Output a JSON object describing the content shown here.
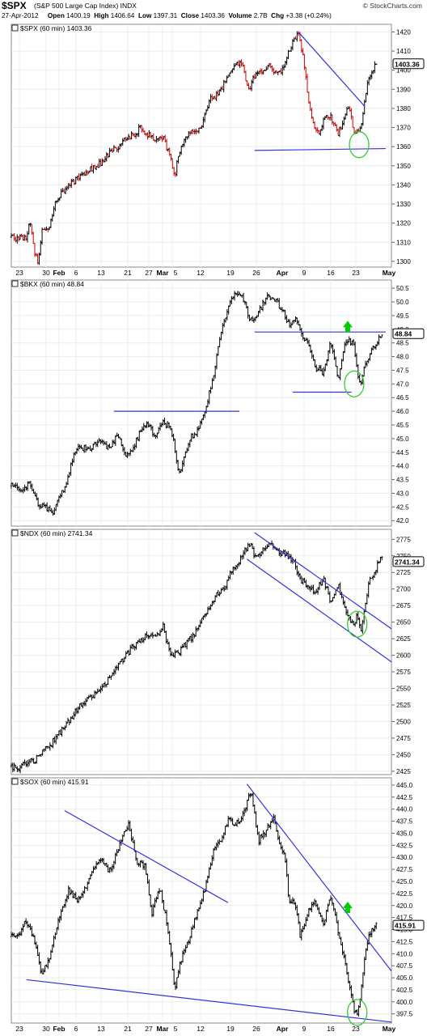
{
  "header": {
    "symbol": "$SPX",
    "name": "(S&P 500 Large Cap Index) INDX",
    "brand": "© StockCharts.com",
    "date": "27-Apr-2012",
    "open_label": "Open",
    "open": "1400.19",
    "high_label": "High",
    "high": "1406.64",
    "low_label": "Low",
    "low": "1397.31",
    "close_label": "Close",
    "close": "1403.36",
    "volume_label": "Volume",
    "volume": "2.7B",
    "chg_label": "Chg",
    "chg": "+3.38 (+0.24%)"
  },
  "colors": {
    "up": "#000000",
    "down": "#cc0000",
    "trendline": "#3333dd",
    "circle": "#33cc33",
    "arrow": "#00cc00"
  },
  "chart_data": [
    {
      "type": "ohlc",
      "title": "$SPX (60 min) 1403.36",
      "last_label": "1403.36",
      "x_ticks": [
        "23",
        "30",
        "Feb",
        "6",
        "13",
        "21",
        "27",
        "Mar",
        "5",
        "12",
        "19",
        "26",
        "Apr",
        "9",
        "16",
        "23",
        "May"
      ],
      "ylim": [
        1297,
        1424
      ],
      "y_ticks": [
        "1420",
        "1410",
        "1400",
        "1390",
        "1380",
        "1370",
        "1360",
        "1350",
        "1340",
        "1330",
        "1320",
        "1310",
        "1300"
      ],
      "path": [
        [
          0,
          1313
        ],
        [
          20,
          1312
        ],
        [
          40,
          1313
        ],
        [
          50,
          1321
        ],
        [
          60,
          1306
        ],
        [
          70,
          1300
        ],
        [
          80,
          1315
        ],
        [
          100,
          1318
        ],
        [
          120,
          1333
        ],
        [
          160,
          1341
        ],
        [
          200,
          1347
        ],
        [
          240,
          1352
        ],
        [
          260,
          1357
        ],
        [
          280,
          1360
        ],
        [
          300,
          1365
        ],
        [
          320,
          1366
        ],
        [
          340,
          1370
        ],
        [
          350,
          1367
        ],
        [
          380,
          1364
        ],
        [
          400,
          1364
        ],
        [
          420,
          1354
        ],
        [
          430,
          1345
        ],
        [
          440,
          1356
        ],
        [
          450,
          1362
        ],
        [
          480,
          1369
        ],
        [
          500,
          1369
        ],
        [
          520,
          1384
        ],
        [
          550,
          1389
        ],
        [
          570,
          1397
        ],
        [
          590,
          1403
        ],
        [
          610,
          1403
        ],
        [
          620,
          1392
        ],
        [
          630,
          1391
        ],
        [
          640,
          1397
        ],
        [
          660,
          1400
        ],
        [
          680,
          1403
        ],
        [
          700,
          1397
        ],
        [
          720,
          1404
        ],
        [
          740,
          1414
        ],
        [
          755,
          1420
        ],
        [
          770,
          1405
        ],
        [
          780,
          1387
        ],
        [
          790,
          1375
        ],
        [
          800,
          1370
        ],
        [
          810,
          1365
        ],
        [
          820,
          1374
        ],
        [
          840,
          1376
        ],
        [
          860,
          1367
        ],
        [
          870,
          1372
        ],
        [
          880,
          1378
        ],
        [
          890,
          1381
        ],
        [
          900,
          1366
        ],
        [
          910,
          1368
        ],
        [
          920,
          1371
        ],
        [
          930,
          1384
        ],
        [
          940,
          1396
        ],
        [
          960,
          1404
        ]
      ],
      "trendlines": [
        [
          [
            755,
            1420
          ],
          [
            930,
            1381
          ]
        ],
        [
          [
            640,
            1358
          ],
          [
            985,
            1359
          ]
        ]
      ],
      "circles": [
        [
          915,
          1361
        ]
      ],
      "arrows": []
    },
    {
      "type": "ohlc",
      "title": "$BKX (60 min) 48.84",
      "last_label": "48.84",
      "x_ticks": [],
      "ylim": [
        41.8,
        50.8
      ],
      "y_ticks": [
        "50.5",
        "50.0",
        "49.5",
        "49.0",
        "48.5",
        "48.0",
        "47.5",
        "47.0",
        "46.5",
        "46.0",
        "45.5",
        "45.0",
        "44.5",
        "44.0",
        "43.5",
        "43.0",
        "42.5",
        "42.0"
      ],
      "path": [
        [
          0,
          43.3
        ],
        [
          30,
          43.1
        ],
        [
          50,
          43.4
        ],
        [
          70,
          42.6
        ],
        [
          90,
          42.5
        ],
        [
          110,
          42.3
        ],
        [
          130,
          42.9
        ],
        [
          150,
          43.6
        ],
        [
          170,
          44.7
        ],
        [
          200,
          44.6
        ],
        [
          230,
          44.9
        ],
        [
          260,
          44.6
        ],
        [
          280,
          45.2
        ],
        [
          300,
          44.3
        ],
        [
          320,
          44.6
        ],
        [
          340,
          45.3
        ],
        [
          360,
          45.5
        ],
        [
          380,
          45.1
        ],
        [
          400,
          45.6
        ],
        [
          420,
          45.4
        ],
        [
          430,
          44.6
        ],
        [
          440,
          43.7
        ],
        [
          450,
          44.1
        ],
        [
          470,
          45.0
        ],
        [
          490,
          45.3
        ],
        [
          510,
          46.0
        ],
        [
          530,
          47.2
        ],
        [
          550,
          48.8
        ],
        [
          570,
          49.8
        ],
        [
          590,
          50.3
        ],
        [
          610,
          50.1
        ],
        [
          630,
          49.3
        ],
        [
          650,
          49.6
        ],
        [
          670,
          50.2
        ],
        [
          690,
          50.1
        ],
        [
          710,
          49.8
        ],
        [
          730,
          49.2
        ],
        [
          750,
          49.3
        ],
        [
          765,
          48.8
        ],
        [
          780,
          48.5
        ],
        [
          800,
          47.6
        ],
        [
          820,
          47.4
        ],
        [
          840,
          48.5
        ],
        [
          860,
          47.2
        ],
        [
          880,
          48.6
        ],
        [
          900,
          48.5
        ],
        [
          910,
          47.4
        ],
        [
          920,
          47.0
        ],
        [
          930,
          47.6
        ],
        [
          945,
          48.1
        ],
        [
          960,
          48.5
        ],
        [
          975,
          48.8
        ]
      ],
      "trendlines": [
        [
          [
            270,
            46.0
          ],
          [
            600,
            46.0
          ]
        ],
        [
          [
            640,
            48.9
          ],
          [
            985,
            48.9
          ]
        ],
        [
          [
            740,
            46.7
          ],
          [
            895,
            46.7
          ]
        ]
      ],
      "circles": [
        [
          902,
          47.0
        ]
      ],
      "arrows": [
        [
          885,
          49.1
        ]
      ]
    },
    {
      "type": "ohlc",
      "title": "$NDX (60 min) 2741.34",
      "last_label": "2741.34",
      "x_ticks": [],
      "ylim": [
        2420,
        2790
      ],
      "y_ticks": [
        "2775",
        "2750",
        "2725",
        "2700",
        "2675",
        "2650",
        "2625",
        "2600",
        "2575",
        "2550",
        "2525",
        "2500",
        "2475",
        "2450",
        "2425"
      ],
      "path": [
        [
          0,
          2432
        ],
        [
          20,
          2428
        ],
        [
          40,
          2437
        ],
        [
          60,
          2442
        ],
        [
          80,
          2455
        ],
        [
          100,
          2463
        ],
        [
          120,
          2478
        ],
        [
          140,
          2492
        ],
        [
          160,
          2508
        ],
        [
          180,
          2524
        ],
        [
          200,
          2532
        ],
        [
          220,
          2543
        ],
        [
          240,
          2552
        ],
        [
          260,
          2569
        ],
        [
          280,
          2587
        ],
        [
          300,
          2599
        ],
        [
          320,
          2614
        ],
        [
          340,
          2621
        ],
        [
          360,
          2632
        ],
        [
          380,
          2628
        ],
        [
          400,
          2644
        ],
        [
          410,
          2618
        ],
        [
          420,
          2596
        ],
        [
          440,
          2605
        ],
        [
          460,
          2618
        ],
        [
          480,
          2631
        ],
        [
          500,
          2655
        ],
        [
          520,
          2671
        ],
        [
          540,
          2692
        ],
        [
          560,
          2702
        ],
        [
          580,
          2727
        ],
        [
          600,
          2742
        ],
        [
          620,
          2762
        ],
        [
          630,
          2771
        ],
        [
          640,
          2749
        ],
        [
          660,
          2757
        ],
        [
          680,
          2770
        ],
        [
          700,
          2756
        ],
        [
          720,
          2752
        ],
        [
          740,
          2745
        ],
        [
          760,
          2713
        ],
        [
          780,
          2705
        ],
        [
          800,
          2694
        ],
        [
          820,
          2716
        ],
        [
          840,
          2682
        ],
        [
          860,
          2705
        ],
        [
          880,
          2667
        ],
        [
          900,
          2646
        ],
        [
          910,
          2660
        ],
        [
          920,
          2634
        ],
        [
          940,
          2709
        ],
        [
          960,
          2732
        ],
        [
          975,
          2747
        ]
      ],
      "trendlines": [
        [
          [
            640,
            2785
          ],
          [
            1000,
            2640
          ]
        ],
        [
          [
            620,
            2745
          ],
          [
            1000,
            2590
          ]
        ]
      ],
      "circles": [
        [
          910,
          2647
        ]
      ],
      "arrows": []
    },
    {
      "type": "ohlc",
      "title": "$SOX (60 min) 415.91",
      "last_label": "415.91",
      "x_ticks": [
        "23",
        "30",
        "Feb",
        "6",
        "13",
        "21",
        "27",
        "Mar",
        "5",
        "12",
        "19",
        "26",
        "Apr",
        "9",
        "16",
        "23",
        "May"
      ],
      "ylim": [
        395.6,
        446.5
      ],
      "y_ticks": [
        "445.0",
        "442.5",
        "440.0",
        "437.5",
        "435.0",
        "432.5",
        "430.0",
        "427.5",
        "425.0",
        "422.5",
        "420.0",
        "417.5",
        "415.0",
        "412.5",
        "410.0",
        "407.5",
        "405.0",
        "402.5",
        "400.0",
        "397.5"
      ],
      "path": [
        [
          0,
          413.5
        ],
        [
          20,
          414.2
        ],
        [
          40,
          416.9
        ],
        [
          60,
          412.8
        ],
        [
          80,
          405.8
        ],
        [
          100,
          408.7
        ],
        [
          120,
          415.6
        ],
        [
          150,
          423.3
        ],
        [
          180,
          420.7
        ],
        [
          200,
          424.9
        ],
        [
          230,
          429.8
        ],
        [
          260,
          427.1
        ],
        [
          290,
          433.8
        ],
        [
          310,
          436.8
        ],
        [
          330,
          428.7
        ],
        [
          350,
          428.5
        ],
        [
          370,
          418.5
        ],
        [
          390,
          423.6
        ],
        [
          410,
          416.4
        ],
        [
          430,
          402.8
        ],
        [
          450,
          409.9
        ],
        [
          470,
          413.6
        ],
        [
          490,
          418.8
        ],
        [
          510,
          423.7
        ],
        [
          530,
          430.8
        ],
        [
          550,
          433.6
        ],
        [
          570,
          437.8
        ],
        [
          590,
          436.6
        ],
        [
          610,
          439.0
        ],
        [
          630,
          443.9
        ],
        [
          650,
          433.4
        ],
        [
          670,
          435.4
        ],
        [
          690,
          438.3
        ],
        [
          710,
          431.8
        ],
        [
          720,
          430.2
        ],
        [
          730,
          421.3
        ],
        [
          750,
          419.9
        ],
        [
          760,
          413.4
        ],
        [
          780,
          418.8
        ],
        [
          800,
          420.7
        ],
        [
          820,
          415.8
        ],
        [
          840,
          421.8
        ],
        [
          860,
          414.8
        ],
        [
          880,
          407.0
        ],
        [
          900,
          398.8
        ],
        [
          910,
          397.2
        ],
        [
          920,
          402.2
        ],
        [
          930,
          408.9
        ],
        [
          940,
          414.2
        ],
        [
          960,
          415.9
        ]
      ],
      "trendlines": [
        [
          [
            140,
            439.7
          ],
          [
            570,
            420.6
          ]
        ],
        [
          [
            40,
            404.6
          ],
          [
            1000,
            395.8
          ]
        ],
        [
          [
            620,
            445.2
          ],
          [
            1000,
            406.4
          ]
        ]
      ],
      "circles": [
        [
          910,
          397.8
        ]
      ],
      "arrows": [
        [
          885,
          419.6
        ]
      ]
    }
  ]
}
